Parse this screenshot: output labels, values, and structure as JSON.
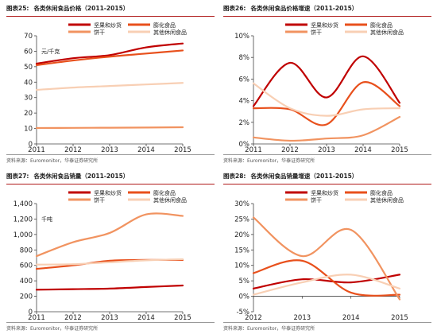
{
  "panels": [
    {
      "figure": "图表25:",
      "title": "各类休闲食品价格（2011-2015）",
      "source": "资料来源：Euromonitor，华泰证券研究所",
      "unit_label": "元/千克",
      "chart_data": {
        "type": "line",
        "x": [
          "2011",
          "2012",
          "2013",
          "2014",
          "2015"
        ],
        "ylim": [
          0,
          70
        ],
        "yticks": [
          "0",
          "10",
          "20",
          "30",
          "40",
          "50",
          "60",
          "70"
        ],
        "ytick_values": [
          0,
          10,
          20,
          30,
          40,
          50,
          60,
          70
        ],
        "legend": "top",
        "grid": false,
        "series": [
          {
            "name": "坚果和炒货",
            "color": "#c00000",
            "values": [
              52,
              55.5,
              57.5,
              62.5,
              65
            ]
          },
          {
            "name": "膨化食品",
            "color": "#e8501c",
            "values": [
              51,
              54,
              56.5,
              58.5,
              60.5
            ]
          },
          {
            "name": "饼干",
            "color": "#f19360",
            "values": [
              10.3,
              10.4,
              10.5,
              10.6,
              10.8
            ]
          },
          {
            "name": "其他休闲食品",
            "color": "#f8cfb4",
            "values": [
              35,
              36.5,
              37.5,
              38.5,
              39.5
            ]
          }
        ]
      }
    },
    {
      "figure": "图表26:",
      "title": "各类休闲食品价格增速（2011-2015）",
      "source": "资料来源：Euromonitor，华泰证券研究所",
      "unit_label": "",
      "chart_data": {
        "type": "line",
        "x": [
          "2011",
          "2012",
          "2013",
          "2014",
          "2015"
        ],
        "ylim": [
          0,
          10
        ],
        "yticks": [
          "0%",
          "2%",
          "4%",
          "6%",
          "8%",
          "10%"
        ],
        "ytick_values": [
          0,
          2,
          4,
          6,
          8,
          10
        ],
        "legend": "top",
        "grid": false,
        "series": [
          {
            "name": "坚果和炒货",
            "color": "#c00000",
            "values": [
              3.5,
              7.5,
              4.3,
              8.1,
              3.8
            ]
          },
          {
            "name": "膨化食品",
            "color": "#e8501c",
            "values": [
              3.3,
              3.2,
              1.8,
              5.7,
              3.5
            ]
          },
          {
            "name": "饼干",
            "color": "#f19360",
            "values": [
              0.6,
              0.3,
              0.5,
              0.8,
              2.5
            ]
          },
          {
            "name": "其他休闲食品",
            "color": "#f8cfb4",
            "values": [
              5.6,
              3.3,
              2.6,
              3.2,
              3.3
            ]
          }
        ]
      }
    },
    {
      "figure": "图表27:",
      "title": "各类休闲食品销量（2011-2015）",
      "source": "资料来源：Euromonitor，华泰证券研究所",
      "unit_label": "千吨",
      "chart_data": {
        "type": "line",
        "x": [
          "2011",
          "2012",
          "2013",
          "2014",
          "2015"
        ],
        "ylim": [
          0,
          1400
        ],
        "yticks": [
          "0",
          "200",
          "400",
          "600",
          "800",
          "1,000",
          "1,200",
          "1,400"
        ],
        "ytick_values": [
          0,
          200,
          400,
          600,
          800,
          1000,
          1200,
          1400
        ],
        "legend": "top",
        "grid": false,
        "series": [
          {
            "name": "坚果和炒货",
            "color": "#c00000",
            "values": [
              285,
              292,
              300,
              320,
              340
            ]
          },
          {
            "name": "膨化食品",
            "color": "#e8501c",
            "values": [
              555,
              600,
              660,
              670,
              670
            ]
          },
          {
            "name": "饼干",
            "color": "#f19360",
            "values": [
              720,
              900,
              1020,
              1260,
              1240
            ]
          },
          {
            "name": "其他休闲食品",
            "color": "#f8cfb4",
            "values": [
              610,
              615,
              640,
              665,
              680
            ]
          }
        ]
      }
    },
    {
      "figure": "图表28:",
      "title": "各类休闲食品销量增速（2011-2015）",
      "source": "资料来源：Euromonitor，华泰证券研究所",
      "unit_label": "",
      "chart_data": {
        "type": "line",
        "x": [
          "2012",
          "2013",
          "2014",
          "2015"
        ],
        "ylim": [
          -5,
          30
        ],
        "yticks": [
          "-5%",
          "0%",
          "5%",
          "10%",
          "15%",
          "20%",
          "25%",
          "30%"
        ],
        "ytick_values": [
          -5,
          0,
          5,
          10,
          15,
          20,
          25,
          30
        ],
        "legend": "top",
        "grid": false,
        "series": [
          {
            "name": "坚果和炒货",
            "color": "#c00000",
            "values": [
              2.5,
              5.5,
              4.5,
              7.0
            ]
          },
          {
            "name": "膨化食品",
            "color": "#e8501c",
            "values": [
              7.5,
              11.5,
              1.2,
              0.5
            ]
          },
          {
            "name": "饼干",
            "color": "#f19360",
            "values": [
              25.5,
              13.0,
              21.5,
              -1.0
            ]
          },
          {
            "name": "其他休闲食品",
            "color": "#f8cfb4",
            "values": [
              0.5,
              4.5,
              7.0,
              2.5
            ]
          }
        ]
      }
    }
  ]
}
